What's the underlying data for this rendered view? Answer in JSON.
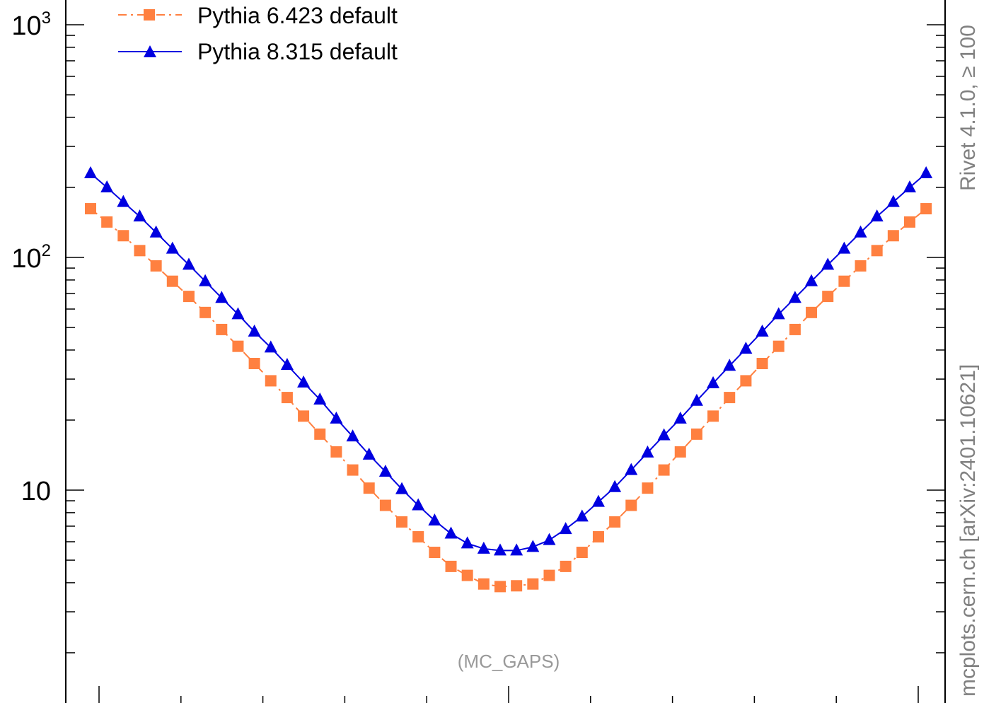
{
  "chart_data": {
    "type": "line",
    "yscale": "log",
    "ylim": [
      2,
      1000
    ],
    "xlim": [
      -0.3,
      10.3
    ],
    "y_tick_labels": [
      {
        "value": 1000,
        "base": "10",
        "exp": "3"
      },
      {
        "value": 100,
        "base": "10",
        "exp": "2"
      },
      {
        "value": 10,
        "base": "10",
        "exp": ""
      }
    ],
    "x": [
      0,
      0.2,
      0.4,
      0.6,
      0.8,
      1.0,
      1.2,
      1.4,
      1.6,
      1.8,
      2.0,
      2.2,
      2.4,
      2.6,
      2.8,
      3.0,
      3.2,
      3.4,
      3.6,
      3.8,
      4.0,
      4.2,
      4.4,
      4.6,
      4.8,
      5.0,
      5.2,
      5.4,
      5.6,
      5.8,
      6.0,
      6.2,
      6.4,
      6.6,
      6.8,
      7.0,
      7.2,
      7.4,
      7.6,
      7.8,
      8.0,
      8.2,
      8.4,
      8.6,
      8.8,
      9.0,
      9.2,
      9.4,
      9.6,
      9.8,
      10.0,
      10.2
    ],
    "series": [
      {
        "name": "Pythia 6.423 default",
        "color": "#ff8040",
        "line": "dash-dot",
        "marker": "square",
        "values": [
          162,
          142,
          124,
          107,
          92,
          79,
          68,
          58,
          49,
          41.5,
          35,
          29.5,
          25,
          20.8,
          17.4,
          14.6,
          12.2,
          10.2,
          8.6,
          7.3,
          6.3,
          5.4,
          4.7,
          4.3,
          3.95,
          3.85,
          3.88,
          3.95,
          4.3,
          4.7,
          5.4,
          6.3,
          7.3,
          8.6,
          10.2,
          12.2,
          14.6,
          17.4,
          20.8,
          25,
          29.5,
          35,
          41.5,
          49,
          58,
          68,
          79,
          92,
          107,
          124,
          142,
          162
        ]
      },
      {
        "name": "Pythia 8.315 default",
        "color": "#0000e0",
        "line": "solid",
        "marker": "triangle",
        "values": [
          230,
          200,
          173,
          150,
          128,
          109,
          93,
          79,
          67,
          57,
          48,
          41,
          34.5,
          29,
          24.5,
          20.3,
          17,
          14.2,
          12,
          10.1,
          8.6,
          7.4,
          6.5,
          5.9,
          5.6,
          5.5,
          5.5,
          5.7,
          6.1,
          6.8,
          7.7,
          8.9,
          10.3,
          12.2,
          14.5,
          17.2,
          20.3,
          24.2,
          28.8,
          34.2,
          40.5,
          48,
          57,
          67,
          79,
          93,
          109,
          128,
          150,
          173,
          200,
          230
        ]
      }
    ],
    "annotation": "(MC_GAPS)",
    "side_label": "mcplots.cern.ch [arXiv:2401.10621]",
    "side_label_2": "Rivet 4.1.0, ≥ 100"
  }
}
